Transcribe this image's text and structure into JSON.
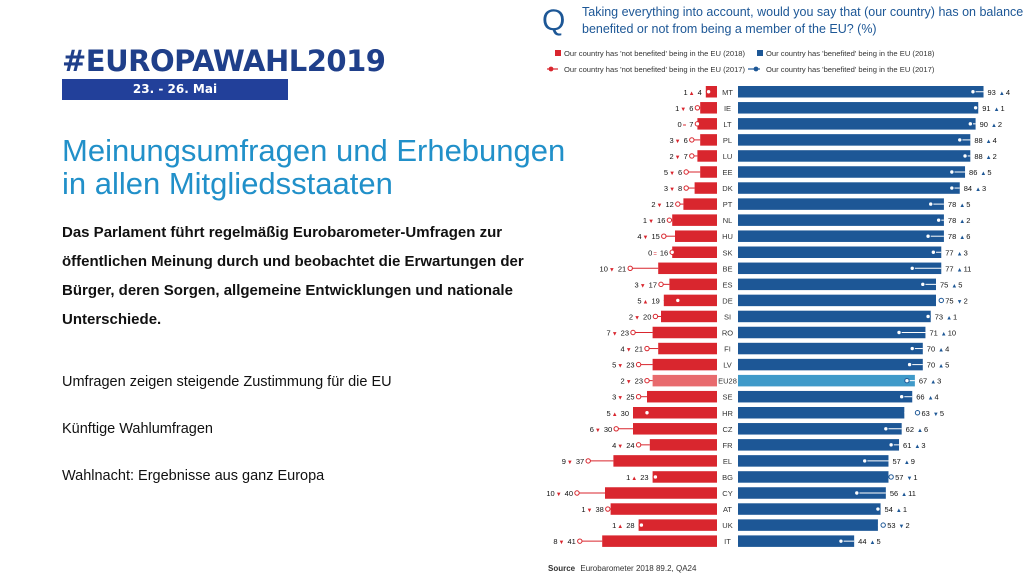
{
  "logo": {
    "title": "#EUROPAWAHL2019",
    "dates": "23. - 26. Mai"
  },
  "heading_line1": "Meinungsumfragen und Erhebungen",
  "heading_line2": "in allen Mitgliedsstaaten",
  "intro": "Das Parlament führt regelmäßig Eurobarometer-Umfragen zur öffentlichen Meinung durch und beobachtet die Erwartungen der Bürger, deren Sorgen, allgemeine Entwicklungen und nationale Unterschiede.",
  "links": [
    "Umfragen zeigen steigende Zustimmung für die EU",
    "Künftige Wahlumfragen",
    "Wahlnacht: Ergebnisse aus ganz Europa"
  ],
  "colors": {
    "red": "#d9262e",
    "blue": "#1d5796",
    "eu28_red": "#e86b6e",
    "eu28_blue": "#3f9ac9",
    "title_blue": "#2190c9",
    "logo_blue": "#22409a"
  },
  "chart_data": {
    "type": "bar",
    "title_q": "Q",
    "title": "Taking everything into account, would you say that (our country) has on balance benefited or not from being a member of the EU? (%)",
    "legend": {
      "not_benefited_2018": "Our country has 'not benefited' being in the EU (2018)",
      "benefited_2018": "Our country has 'benefited' being in the EU (2018)",
      "not_benefited_2017": "Our country has 'not benefited' being in the EU (2017)",
      "benefited_2017": "Our country has 'benefited' being in the EU (2017)"
    },
    "source_label": "Source",
    "source_text": "Eurobarometer 2018 89.2, QA24",
    "rows": [
      {
        "country": "MT",
        "nb": 4,
        "nb_change": 1,
        "nb_dir": "up",
        "b": 93,
        "b_change": 4,
        "b_dir": "up"
      },
      {
        "country": "IE",
        "nb": 6,
        "nb_change": 1,
        "nb_dir": "down",
        "b": 91,
        "b_change": 1,
        "b_dir": "up"
      },
      {
        "country": "LT",
        "nb": 7,
        "nb_change": 0,
        "nb_dir": "eq",
        "b": 90,
        "b_change": 2,
        "b_dir": "up"
      },
      {
        "country": "PL",
        "nb": 6,
        "nb_change": 3,
        "nb_dir": "down",
        "b": 88,
        "b_change": 4,
        "b_dir": "up"
      },
      {
        "country": "LU",
        "nb": 7,
        "nb_change": 2,
        "nb_dir": "down",
        "b": 88,
        "b_change": 2,
        "b_dir": "up"
      },
      {
        "country": "EE",
        "nb": 6,
        "nb_change": 5,
        "nb_dir": "down",
        "b": 86,
        "b_change": 5,
        "b_dir": "up"
      },
      {
        "country": "DK",
        "nb": 8,
        "nb_change": 3,
        "nb_dir": "down",
        "b": 84,
        "b_change": 3,
        "b_dir": "up"
      },
      {
        "country": "PT",
        "nb": 12,
        "nb_change": 2,
        "nb_dir": "down",
        "b": 78,
        "b_change": 5,
        "b_dir": "up"
      },
      {
        "country": "NL",
        "nb": 16,
        "nb_change": 1,
        "nb_dir": "down",
        "b": 78,
        "b_change": 2,
        "b_dir": "up"
      },
      {
        "country": "HU",
        "nb": 15,
        "nb_change": 4,
        "nb_dir": "down",
        "b": 78,
        "b_change": 6,
        "b_dir": "up"
      },
      {
        "country": "SK",
        "nb": 16,
        "nb_change": 0,
        "nb_dir": "eq",
        "b": 77,
        "b_change": 3,
        "b_dir": "up"
      },
      {
        "country": "BE",
        "nb": 21,
        "nb_change": 10,
        "nb_dir": "down",
        "b": 77,
        "b_change": 11,
        "b_dir": "up"
      },
      {
        "country": "ES",
        "nb": 17,
        "nb_change": 3,
        "nb_dir": "down",
        "b": 75,
        "b_change": 5,
        "b_dir": "up"
      },
      {
        "country": "DE",
        "nb": 19,
        "nb_change": 5,
        "nb_dir": "up",
        "b": 75,
        "b_change": 2,
        "b_dir": "down"
      },
      {
        "country": "SI",
        "nb": 20,
        "nb_change": 2,
        "nb_dir": "down",
        "b": 73,
        "b_change": 1,
        "b_dir": "up"
      },
      {
        "country": "RO",
        "nb": 23,
        "nb_change": 7,
        "nb_dir": "down",
        "b": 71,
        "b_change": 10,
        "b_dir": "up"
      },
      {
        "country": "FI",
        "nb": 21,
        "nb_change": 4,
        "nb_dir": "down",
        "b": 70,
        "b_change": 4,
        "b_dir": "up"
      },
      {
        "country": "LV",
        "nb": 23,
        "nb_change": 5,
        "nb_dir": "down",
        "b": 70,
        "b_change": 5,
        "b_dir": "up"
      },
      {
        "country": "EU28",
        "nb": 23,
        "nb_change": 2,
        "nb_dir": "down",
        "b": 67,
        "b_change": 3,
        "b_dir": "up"
      },
      {
        "country": "SE",
        "nb": 25,
        "nb_change": 3,
        "nb_dir": "down",
        "b": 66,
        "b_change": 4,
        "b_dir": "up"
      },
      {
        "country": "HR",
        "nb": 30,
        "nb_change": 5,
        "nb_dir": "up",
        "b": 63,
        "b_change": 5,
        "b_dir": "down"
      },
      {
        "country": "CZ",
        "nb": 30,
        "nb_change": 6,
        "nb_dir": "down",
        "b": 62,
        "b_change": 6,
        "b_dir": "up"
      },
      {
        "country": "FR",
        "nb": 24,
        "nb_change": 4,
        "nb_dir": "down",
        "b": 61,
        "b_change": 3,
        "b_dir": "up"
      },
      {
        "country": "EL",
        "nb": 37,
        "nb_change": 9,
        "nb_dir": "down",
        "b": 57,
        "b_change": 9,
        "b_dir": "up"
      },
      {
        "country": "BG",
        "nb": 23,
        "nb_change": 1,
        "nb_dir": "up",
        "b": 57,
        "b_change": 1,
        "b_dir": "down"
      },
      {
        "country": "CY",
        "nb": 40,
        "nb_change": 10,
        "nb_dir": "down",
        "b": 56,
        "b_change": 11,
        "b_dir": "up"
      },
      {
        "country": "AT",
        "nb": 38,
        "nb_change": 1,
        "nb_dir": "down",
        "b": 54,
        "b_change": 1,
        "b_dir": "up"
      },
      {
        "country": "UK",
        "nb": 28,
        "nb_change": 1,
        "nb_dir": "up",
        "b": 53,
        "b_change": 2,
        "b_dir": "down"
      },
      {
        "country": "IT",
        "nb": 41,
        "nb_change": 8,
        "nb_dir": "down",
        "b": 44,
        "b_change": 5,
        "b_dir": "up"
      }
    ]
  }
}
